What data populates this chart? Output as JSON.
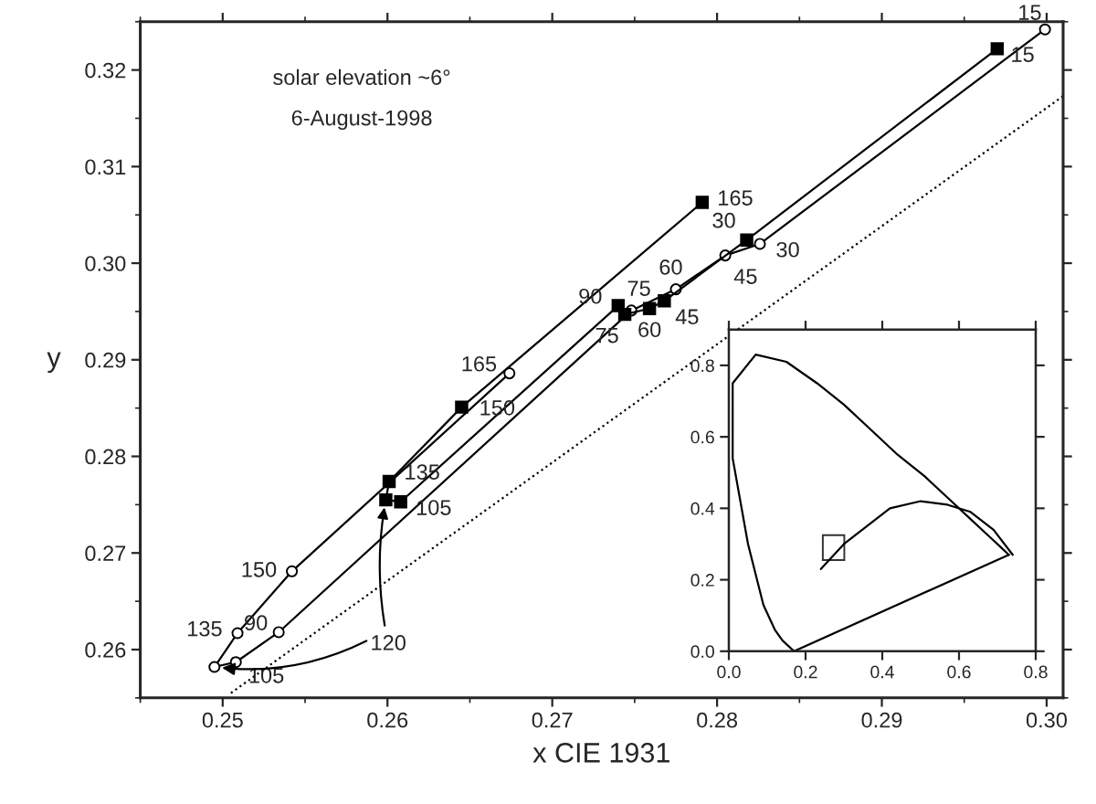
{
  "chart_data": [
    {
      "type": "line",
      "xlabel": "x CIE 1931",
      "ylabel": "y",
      "xlim": [
        0.245,
        0.301
      ],
      "ylim": [
        0.255,
        0.325
      ],
      "xticks": [
        0.25,
        0.26,
        0.27,
        0.28,
        0.29,
        {
          "value": 0.3,
          "label": "0.30"
        }
      ],
      "yticks": [
        0.26,
        0.27,
        0.28,
        0.29,
        {
          "value": 0.3,
          "label": "0.30"
        },
        0.31,
        0.32
      ],
      "annotations": [
        "solar elevation ~6°",
        "6-August-1998",
        {
          "text": "15",
          "x": 0.297,
          "y": 0.3222
        },
        {
          "text": "30",
          "x": 0.2818,
          "y": 0.3024
        },
        {
          "text": "45",
          "x": 0.2768,
          "y": 0.2961
        },
        {
          "text": "60",
          "x": 0.2759,
          "y": 0.2953
        },
        {
          "text": "75",
          "x": 0.2744,
          "y": 0.2947
        },
        {
          "text": "90",
          "x": 0.274,
          "y": 0.2956
        },
        {
          "text": "105",
          "x": 0.2608,
          "y": 0.2753
        },
        {
          "text": "135",
          "x": 0.2601,
          "y": 0.2774
        },
        {
          "text": "150",
          "x": 0.2645,
          "y": 0.2851
        },
        {
          "text": "165",
          "x": 0.2791,
          "y": 0.3063
        },
        {
          "text": "15",
          "x": 0.2999,
          "y": 0.3242
        },
        {
          "text": "30",
          "x": 0.2826,
          "y": 0.302
        },
        {
          "text": "45",
          "x": 0.2805,
          "y": 0.3008
        },
        {
          "text": "60",
          "x": 0.2775,
          "y": 0.2973
        },
        {
          "text": "75",
          "x": 0.2748,
          "y": 0.2951
        },
        {
          "text": "90",
          "x": 0.2534,
          "y": 0.2618
        },
        {
          "text": "105",
          "x": 0.2508,
          "y": 0.2587
        },
        {
          "text": "135",
          "x": 0.2509,
          "y": 0.2617
        },
        {
          "text": "150",
          "x": 0.2542,
          "y": 0.2681
        },
        {
          "text": "165",
          "x": 0.2674,
          "y": 0.2886
        },
        {
          "text": "120",
          "x": 0.2599,
          "y": 0.2755
        }
      ],
      "series": [
        {
          "color": "#000000",
          "marker": "square",
          "x": [
            0.297,
            0.2818,
            0.2768,
            0.2759,
            0.2744,
            0.274,
            0.2608,
            0.2599,
            0.2601,
            0.2645,
            0.2791
          ],
          "values": [
            0.3222,
            0.3024,
            0.2961,
            0.2953,
            0.2947,
            0.2956,
            0.2753,
            0.2755,
            0.2774,
            0.2851,
            0.3063
          ]
        },
        {
          "color": "#000000",
          "marker": "circle",
          "x": [
            0.2999,
            0.2826,
            0.2805,
            0.2775,
            0.2748,
            0.2534,
            0.2508,
            0.2495,
            0.2509,
            0.2542,
            0.2674
          ],
          "values": [
            0.3242,
            0.302,
            0.3008,
            0.2973,
            0.2951,
            0.2618,
            0.2587,
            0.2582,
            0.2617,
            0.2681,
            0.2886
          ]
        },
        {
          "color": "#000000",
          "marker": "none",
          "line_style": "dotted",
          "x": [
            0.2505,
            0.301
          ],
          "values": [
            0.2555,
            0.3173
          ]
        }
      ]
    },
    {
      "type": "line",
      "xlim": [
        0,
        0.8
      ],
      "ylim": [
        0,
        0.9
      ],
      "xticks": [
        {
          "value": 0,
          "label": "0.0"
        },
        0.2,
        0.4,
        0.6,
        0.8
      ],
      "yticks": [
        {
          "value": 0,
          "label": "0.0"
        },
        0.2,
        0.4,
        0.6,
        0.8
      ],
      "series": [
        {
          "color": "#000000",
          "marker": "none",
          "line_style": "solid",
          "x": [
            0.17,
            0.14,
            0.12,
            0.09,
            0.05,
            0.01,
            0.01,
            0.07,
            0.15,
            0.23,
            0.3,
            0.37,
            0.44,
            0.51,
            0.58,
            0.63,
            0.67,
            0.69,
            0.71,
            0.73
          ],
          "values": [
            0.0,
            0.03,
            0.06,
            0.13,
            0.3,
            0.54,
            0.75,
            0.83,
            0.81,
            0.75,
            0.69,
            0.62,
            0.55,
            0.49,
            0.42,
            0.37,
            0.33,
            0.31,
            0.29,
            0.27
          ]
        },
        {
          "color": "#000000",
          "marker": "none",
          "line_style": "solid",
          "x": [
            0.17,
            0.73
          ],
          "values": [
            0.0,
            0.27
          ]
        },
        {
          "color": "#000000",
          "marker": "none",
          "line_style": "solid",
          "x": [
            0.24,
            0.3,
            0.36,
            0.42,
            0.5,
            0.57,
            0.63,
            0.69,
            0.74
          ],
          "values": [
            0.23,
            0.3,
            0.35,
            0.4,
            0.42,
            0.41,
            0.39,
            0.34,
            0.27
          ]
        }
      ]
    }
  ]
}
